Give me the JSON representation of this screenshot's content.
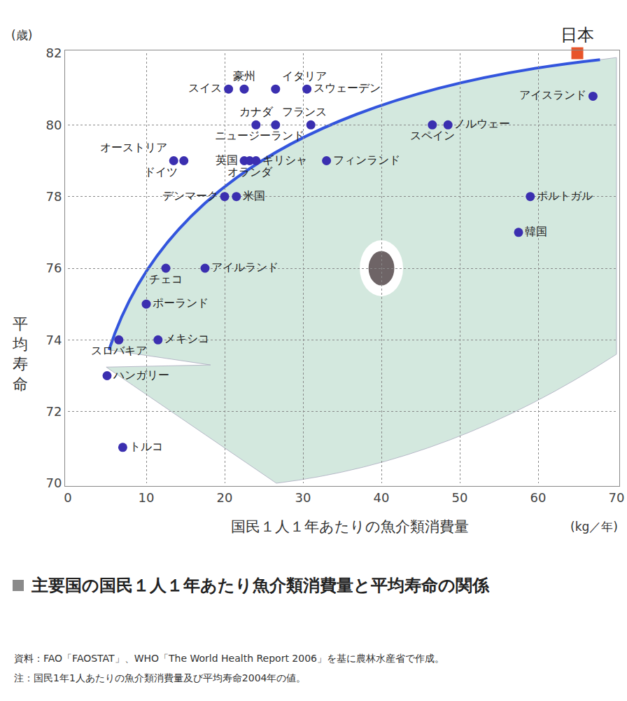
{
  "chart_data": {
    "type": "scatter",
    "title": "主要国の国民１人１年あたり魚介類消費量と平均寿命の関係",
    "notes": [
      "資料：FAO「FAOSTAT」、WHO「The World Health Report 2006」を基に農林水産省で作成。",
      "注：国民1年1人あたりの魚介類消費量及び平均寿命2004年の値。"
    ],
    "xlabel": "国民１人１年あたりの魚介類消費量",
    "xunit": "(kg／年)",
    "ylabel": "平均寿命",
    "yunit": "(歳)",
    "xlim": [
      0,
      70
    ],
    "xticks": [
      0,
      10,
      20,
      30,
      40,
      50,
      60,
      70
    ],
    "ylim": [
      70,
      82
    ],
    "yticks": [
      70,
      72,
      74,
      76,
      78,
      80,
      82
    ],
    "grid": true,
    "tick_labels": true,
    "series": [
      {
        "color": "#3b2fb0",
        "marker": "circle",
        "labels": [
          "スイス",
          "豪州",
          "イタリア",
          "スウェーデン",
          "カナダ",
          "フランス",
          "ニュージーランド",
          "オーストリア",
          "ドイツ",
          "英国",
          "オランダ",
          "ギリシャ",
          "フィンランド",
          "デンマーク",
          "米国",
          "スペイン",
          "ノルウェー",
          "アイスランド",
          "ポルトガル",
          "韓国",
          "チェコ",
          "アイルランド",
          "ポーランド",
          "スロバキア",
          "メキシコ",
          "ハンガリー",
          "トルコ"
        ],
        "x": [
          20.5,
          22.5,
          26.5,
          30.5,
          24,
          26.5,
          31,
          13.5,
          14.8,
          22.5,
          23.2,
          24,
          33,
          20,
          21.5,
          46.5,
          48.5,
          67,
          59,
          57.5,
          12.5,
          17.5,
          10,
          6.5,
          11.5,
          5,
          7
        ],
        "values": [
          81,
          81,
          81,
          81,
          80,
          80,
          80,
          79,
          79,
          79,
          79,
          79,
          79,
          78,
          78,
          80,
          80,
          80.8,
          78,
          77,
          76,
          76,
          75,
          74,
          74,
          73,
          71
        ]
      },
      {
        "color": "#e8542a",
        "marker": "square",
        "labels": [
          "日本"
        ],
        "x": [
          65
        ],
        "values": [
          82
        ]
      }
    ]
  }
}
